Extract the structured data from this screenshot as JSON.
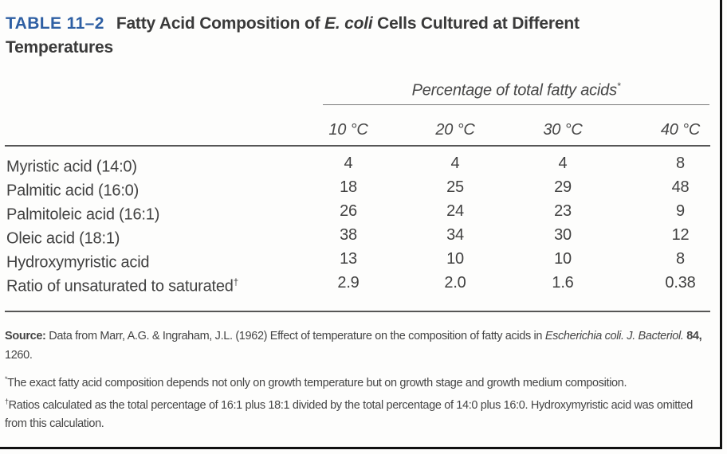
{
  "header": {
    "table_label": "TABLE 11–2",
    "title_pre": "Fatty Acid Composition of ",
    "title_italic": "E. coli",
    "title_post": " Cells Cultured at Different Temperatures"
  },
  "columns": {
    "group_header": "Percentage of total fatty acids",
    "group_header_mark": "*",
    "temps": [
      "10 °C",
      "20 °C",
      "30 °C",
      "40 °C"
    ]
  },
  "rows": [
    {
      "label": "Myristic acid (14:0)",
      "mark": "",
      "values": [
        "4",
        "4",
        "4",
        "8"
      ]
    },
    {
      "label": "Palmitic acid (16:0)",
      "mark": "",
      "values": [
        "18",
        "25",
        "29",
        "48"
      ]
    },
    {
      "label": "Palmitoleic acid (16:1)",
      "mark": "",
      "values": [
        "26",
        "24",
        "23",
        "9"
      ]
    },
    {
      "label": "Oleic acid (18:1)",
      "mark": "",
      "values": [
        "38",
        "34",
        "30",
        "12"
      ]
    },
    {
      "label": "Hydroxymyristic acid",
      "mark": "",
      "values": [
        "13",
        "10",
        "10",
        "8"
      ]
    },
    {
      "label": "Ratio of unsaturated to saturated",
      "mark": "†",
      "values": [
        "2.9",
        "2.0",
        "1.6",
        "0.38"
      ]
    }
  ],
  "source": {
    "label": "Source:",
    "text_pre": " Data from Marr, A.G. & Ingraham, J.L. (1962) Effect of temperature on the composition of fatty acids in ",
    "text_italic": "Escherichia coli. J. Bacteriol.",
    "text_bold": " 84,",
    "text_post": " 1260."
  },
  "footnotes": [
    {
      "mark": "*",
      "text": "The exact fatty acid composition depends not only on growth temperature but on growth stage and growth medium composition."
    },
    {
      "mark": "†",
      "text": "Ratios calculated as the total percentage of 16:1 plus 18:1 divided by the total percentage of 14:0 plus 16:0. Hydroxymyristic acid was omitted from this calculation."
    }
  ],
  "colors": {
    "accent_blue": "#2e5fa3",
    "body_text": "#414141",
    "rule_gray": "#565656",
    "frame_black": "#111111"
  }
}
